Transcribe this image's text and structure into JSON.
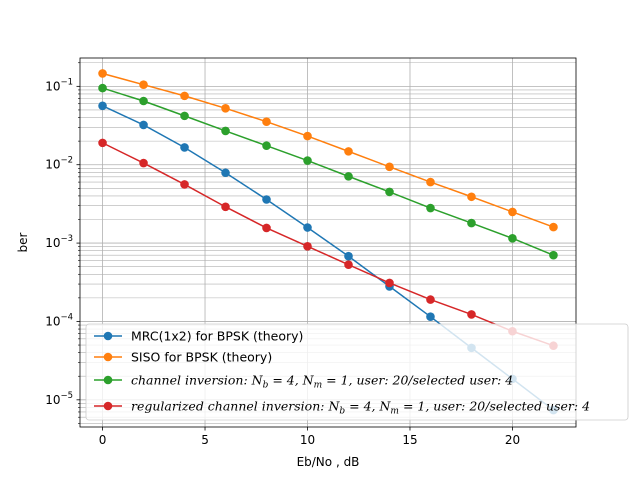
{
  "chart_data": {
    "type": "line",
    "xlabel": "Eb/No , dB",
    "ylabel": "ber",
    "xlim": [
      -1.1,
      23.1
    ],
    "ylim": [
      4.5e-06,
      0.23
    ],
    "yscale": "log",
    "grid": "major and minor, both axes",
    "legend_loc": "lower-left",
    "xticks": [
      0,
      5,
      10,
      15,
      20
    ],
    "xtick_labels": [
      "0",
      "5",
      "10",
      "15",
      "20"
    ],
    "yticks": [
      1e-05,
      0.0001,
      0.001,
      0.01,
      0.1
    ],
    "ytick_labels": [
      {
        "base": "10",
        "exp": "−5"
      },
      {
        "base": "10",
        "exp": "−4"
      },
      {
        "base": "10",
        "exp": "−3"
      },
      {
        "base": "10",
        "exp": "−2"
      },
      {
        "base": "10",
        "exp": "−1"
      }
    ],
    "x": [
      0,
      2,
      4,
      6,
      8,
      10,
      12,
      14,
      16,
      18,
      20,
      22
    ],
    "series": [
      {
        "name": "MRC(1x2) for BPSK (theory)",
        "color": "#1f77b4",
        "values": [
          0.0565,
          0.0322,
          0.0166,
          0.0079,
          0.0036,
          0.00158,
          0.00068,
          0.00028,
          0.000115,
          4.6e-05,
          1.85e-05,
          7.4e-06
        ]
      },
      {
        "name": "SISO for BPSK (theory)",
        "color": "#ff7f0e",
        "values": [
          0.146,
          0.105,
          0.0756,
          0.0525,
          0.0354,
          0.0232,
          0.0148,
          0.0094,
          0.006,
          0.0039,
          0.0025,
          0.0016
        ]
      },
      {
        "name": "channel inversion: N_b = 4, N_m = 1, user: 20/selected user: 4",
        "color": "#2ca02c",
        "values": [
          0.095,
          0.065,
          0.042,
          0.027,
          0.0175,
          0.0113,
          0.0071,
          0.0045,
          0.0028,
          0.0018,
          0.00115,
          0.0007
        ]
      },
      {
        "name": "regularized channel inversion: N_b = 4, N_m = 1, user: 20/selected user: 4",
        "color": "#d62728",
        "values": [
          0.019,
          0.0105,
          0.0056,
          0.0029,
          0.00156,
          0.00091,
          0.00053,
          0.00031,
          0.00019,
          0.000123,
          7.5e-05,
          4.9e-05
        ]
      }
    ],
    "legend": [
      {
        "plain": "MRC(1x2) for BPSK (theory)"
      },
      {
        "plain": "SISO for BPSK (theory)"
      },
      {
        "math": [
          {
            "t": "channel inversion"
          },
          {
            "t": ": "
          },
          {
            "t": "N"
          },
          {
            "sub": "b"
          },
          {
            "t": " = 4, "
          },
          {
            "t": "N"
          },
          {
            "sub": "m"
          },
          {
            "t": " = 1, "
          },
          {
            "t": "user"
          },
          {
            "t": ": 20/"
          },
          {
            "t": "selected user"
          },
          {
            "t": ": 4"
          }
        ]
      },
      {
        "math": [
          {
            "t": "regularized channel inversion"
          },
          {
            "t": ": "
          },
          {
            "t": "N"
          },
          {
            "sub": "b"
          },
          {
            "t": " = 4, "
          },
          {
            "t": "N"
          },
          {
            "sub": "m"
          },
          {
            "t": " = 1, "
          },
          {
            "t": "user"
          },
          {
            "t": ": 20/"
          },
          {
            "t": "selected user"
          },
          {
            "t": ": 4"
          }
        ]
      }
    ]
  }
}
